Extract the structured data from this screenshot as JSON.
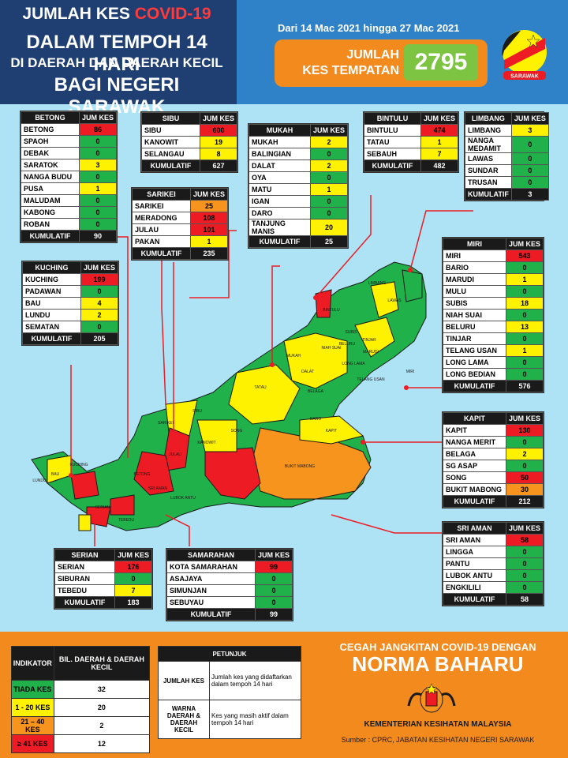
{
  "header": {
    "title_line1_prefix": "JUMLAH KES",
    "title_line1_highlight": "COVID-19",
    "title_line2": "DALAM TEMPOH 14 HARI",
    "title_line3": "DI DAERAH DAN DAERAH KECIL",
    "title_line4": "BAGI NEGERI SARAWAK",
    "date_range": "Dari 14 Mac 2021 hingga 27 Mac 2021",
    "total_label_1": "JUMLAH",
    "total_label_2": "KES TEMPATAN",
    "total_value": "2795",
    "flag_label": "SARAWAK"
  },
  "colors": {
    "green": "#21b14a",
    "yellow": "#fff200",
    "orange": "#f7941d",
    "red": "#ed1c24"
  },
  "cards": {
    "betong": {
      "title": "BETONG",
      "col": "JUM KES",
      "rows": [
        [
          "BETONG",
          "86",
          "r"
        ],
        [
          "SPAOH",
          "0",
          "g"
        ],
        [
          "DEBAK",
          "0",
          "g"
        ],
        [
          "SARATOK",
          "3",
          "y"
        ],
        [
          "NANGA BUDU",
          "0",
          "g"
        ],
        [
          "PUSA",
          "1",
          "y"
        ],
        [
          "MALUDAM",
          "0",
          "g"
        ],
        [
          "KABONG",
          "0",
          "g"
        ],
        [
          "ROBAN",
          "0",
          "g"
        ]
      ],
      "kum_label": "KUMULATIF",
      "kum": "90"
    },
    "sibu": {
      "title": "SIBU",
      "col": "JUM KES",
      "rows": [
        [
          "SIBU",
          "600",
          "r"
        ],
        [
          "KANOWIT",
          "19",
          "y"
        ],
        [
          "SELANGAU",
          "8",
          "y"
        ]
      ],
      "kum_label": "KUMULATIF",
      "kum": "627"
    },
    "sarikei": {
      "title": "SARIKEI",
      "col": "JUM KES",
      "rows": [
        [
          "SARIKEI",
          "25",
          "o"
        ],
        [
          "MERADONG",
          "108",
          "r"
        ],
        [
          "JULAU",
          "101",
          "r"
        ],
        [
          "PAKAN",
          "1",
          "y"
        ]
      ],
      "kum_label": "KUMULATIF",
      "kum": "235"
    },
    "mukah": {
      "title": "MUKAH",
      "col": "JUM KES",
      "rows": [
        [
          "MUKAH",
          "2",
          "y"
        ],
        [
          "BALINGIAN",
          "0",
          "g"
        ],
        [
          "DALAT",
          "2",
          "y"
        ],
        [
          "OYA",
          "0",
          "g"
        ],
        [
          "MATU",
          "1",
          "y"
        ],
        [
          "IGAN",
          "0",
          "g"
        ],
        [
          "DARO",
          "0",
          "g"
        ],
        [
          "TANJUNG MANIS",
          "20",
          "y"
        ]
      ],
      "kum_label": "KUMULATIF",
      "kum": "25"
    },
    "bintulu": {
      "title": "BINTULU",
      "col": "JUM KES",
      "rows": [
        [
          "BINTULU",
          "474",
          "r"
        ],
        [
          "TATAU",
          "1",
          "y"
        ],
        [
          "SEBAUH",
          "7",
          "y"
        ]
      ],
      "kum_label": "KUMULATIF",
      "kum": "482"
    },
    "limbang": {
      "title": "LIMBANG",
      "col": "JUM KES",
      "rows": [
        [
          "LIMBANG",
          "3",
          "y"
        ],
        [
          "NANGA MEDAMIT",
          "0",
          "g"
        ],
        [
          "LAWAS",
          "0",
          "g"
        ],
        [
          "SUNDAR",
          "0",
          "g"
        ],
        [
          "TRUSAN",
          "0",
          "g"
        ]
      ],
      "kum_label": "KUMULATIF",
      "kum": "3"
    },
    "kuching": {
      "title": "KUCHING",
      "col": "JUM KES",
      "rows": [
        [
          "KUCHING",
          "199",
          "r"
        ],
        [
          "PADAWAN",
          "0",
          "g"
        ],
        [
          "BAU",
          "4",
          "y"
        ],
        [
          "LUNDU",
          "2",
          "y"
        ],
        [
          "SEMATAN",
          "0",
          "g"
        ]
      ],
      "kum_label": "KUMULATIF",
      "kum": "205"
    },
    "miri": {
      "title": "MIRI",
      "col": "JUM KES",
      "rows": [
        [
          "MIRI",
          "543",
          "r"
        ],
        [
          "BARIO",
          "0",
          "g"
        ],
        [
          "MARUDI",
          "1",
          "y"
        ],
        [
          "MULU",
          "0",
          "g"
        ],
        [
          "SUBIS",
          "18",
          "y"
        ],
        [
          "NIAH SUAI",
          "0",
          "g"
        ],
        [
          "BELURU",
          "13",
          "y"
        ],
        [
          "TINJAR",
          "0",
          "g"
        ],
        [
          "TELANG USAN",
          "1",
          "y"
        ],
        [
          "LONG LAMA",
          "0",
          "g"
        ],
        [
          "LONG BEDIAN",
          "0",
          "g"
        ]
      ],
      "kum_label": "KUMULATIF",
      "kum": "576"
    },
    "kapit": {
      "title": "KAPIT",
      "col": "JUM KES",
      "rows": [
        [
          "KAPIT",
          "130",
          "r"
        ],
        [
          "NANGA MERIT",
          "0",
          "g"
        ],
        [
          "BELAGA",
          "2",
          "y"
        ],
        [
          "SG ASAP",
          "0",
          "g"
        ],
        [
          "SONG",
          "50",
          "r"
        ],
        [
          "BUKIT MABONG",
          "30",
          "o"
        ]
      ],
      "kum_label": "KUMULATIF",
      "kum": "212"
    },
    "sriaman": {
      "title": "SRI AMAN",
      "col": "JUM KES",
      "rows": [
        [
          "SRI AMAN",
          "58",
          "r"
        ],
        [
          "LINGGA",
          "0",
          "g"
        ],
        [
          "PANTU",
          "0",
          "g"
        ],
        [
          "LUBOK ANTU",
          "0",
          "g"
        ],
        [
          "ENGKILILI",
          "0",
          "g"
        ]
      ],
      "kum_label": "KUMULATIF",
      "kum": "58"
    },
    "serian": {
      "title": "SERIAN",
      "col": "JUM KES",
      "rows": [
        [
          "SERIAN",
          "176",
          "r"
        ],
        [
          "SIBURAN",
          "0",
          "g"
        ],
        [
          "TEBEDU",
          "7",
          "y"
        ]
      ],
      "kum_label": "KUMULATIF",
      "kum": "183"
    },
    "samarahan": {
      "title": "SAMARAHAN",
      "col": "JUM KES",
      "rows": [
        [
          "KOTA SAMARAHAN",
          "99",
          "r"
        ],
        [
          "ASAJAYA",
          "0",
          "g"
        ],
        [
          "SIMUNJAN",
          "0",
          "g"
        ],
        [
          "SEBUYAU",
          "0",
          "g"
        ]
      ],
      "kum_label": "KUMULATIF",
      "kum": "99"
    }
  },
  "indicator": {
    "head1": "INDIKATOR",
    "head2": "BIL. DAERAH & DAERAH KECIL",
    "rows": [
      [
        "TIADA KES",
        "32",
        "g"
      ],
      [
        "1 - 20 KES",
        "20",
        "y"
      ],
      [
        "21 – 40 KES",
        "2",
        "o"
      ],
      [
        "≥ 41 KES",
        "12",
        "r"
      ]
    ]
  },
  "petunjuk": {
    "title": "PETUNJUK",
    "r1_key": "JUMLAH KES",
    "r1_val": "Jumlah kes yang didaftarkan dalam tempoh 14 hari",
    "r2_key": "WARNA DAERAH & DAERAH KECIL",
    "r2_val": "Kes yang masih aktif dalam tempoh 14 hari"
  },
  "footer": {
    "slogan1": "CEGAH JANGKITAN COVID-19 DENGAN",
    "slogan2": "NORMA BAHARU",
    "ministry": "KEMENTERIAN KESIHATAN MALAYSIA",
    "source": "Sumber : CPRC, JABATAN KESIHATAN NEGERI SARAWAK"
  },
  "map_labels": [
    "LIMBANG",
    "LAWAS",
    "MIRI",
    "MARUDI",
    "SUBIS",
    "BINTULU",
    "TATAU",
    "MUKAH",
    "DALAT",
    "DARO",
    "SIBU",
    "KANOWIT",
    "SONG",
    "KAPIT",
    "BELAGA",
    "BUKIT MABONG",
    "SARIKEI",
    "JULAU",
    "BETONG",
    "SRI AMAN",
    "LUBOK ANTU",
    "KUCHING",
    "BAU",
    "LUNDU",
    "SERIAN",
    "TEBEDU",
    "TELANG USAN",
    "LONG LAMA",
    "TINJAR",
    "BELURU",
    "NIAH SUAI"
  ]
}
